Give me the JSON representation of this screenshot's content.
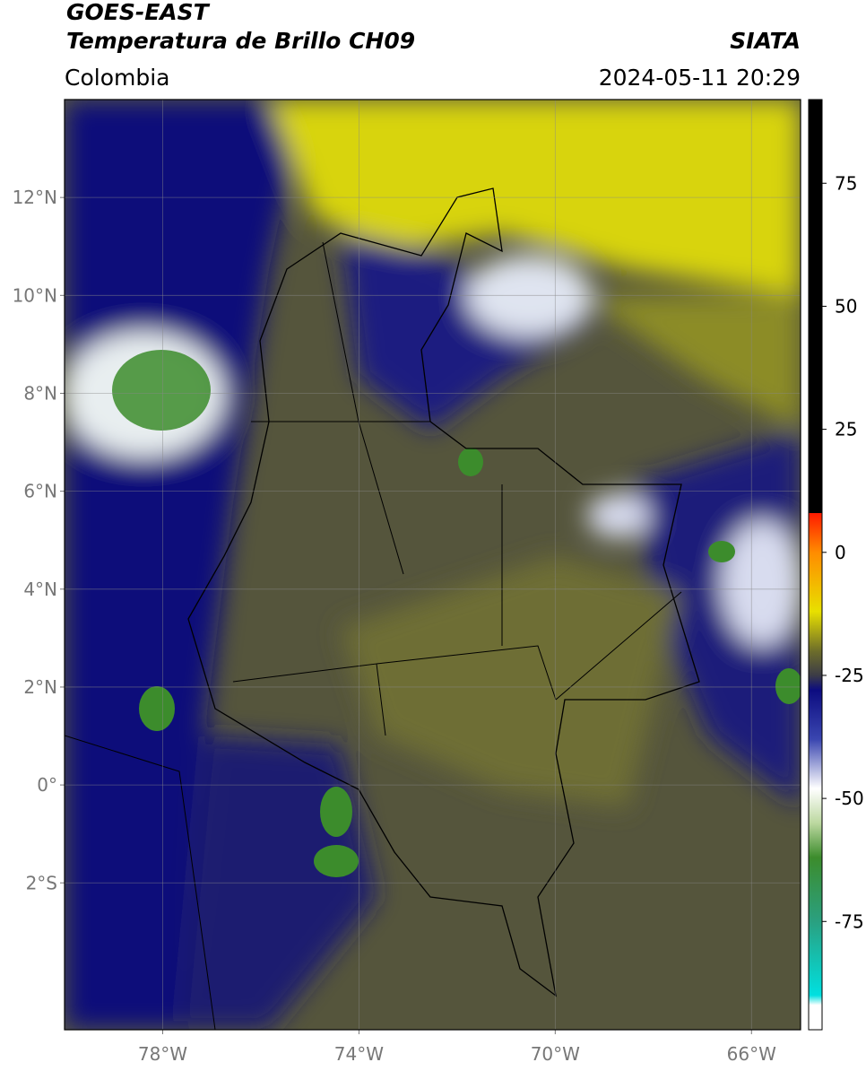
{
  "header": {
    "title_line1": "GOES-EAST",
    "title_line2": "Temperatura de Brillo CH09",
    "source": "SIATA",
    "region": "Colombia",
    "datetime": "2024-05-11 20:29"
  },
  "map": {
    "xlim": [
      -80,
      -65
    ],
    "ylim": [
      -5,
      14
    ],
    "xticks": [
      {
        "value": -78,
        "label": "78°W"
      },
      {
        "value": -74,
        "label": "74°W"
      },
      {
        "value": -70,
        "label": "70°W"
      },
      {
        "value": -66,
        "label": "66°W"
      }
    ],
    "yticks": [
      {
        "value": 12,
        "label": "12°N"
      },
      {
        "value": 10,
        "label": "10°N"
      },
      {
        "value": 8,
        "label": "8°N"
      },
      {
        "value": 6,
        "label": "6°N"
      },
      {
        "value": 4,
        "label": "4°N"
      },
      {
        "value": 2,
        "label": "2°N"
      },
      {
        "value": 0,
        "label": "0°"
      },
      {
        "value": -2,
        "label": "2°S"
      }
    ],
    "grid": true
  },
  "colorbar": {
    "lim": [
      -97,
      92
    ],
    "ticks": [
      75,
      50,
      25,
      0,
      -25,
      -50,
      -75
    ],
    "colormap": [
      {
        "value": 92,
        "color": "#000000"
      },
      {
        "value": 8,
        "color": "#000000"
      },
      {
        "value": 8,
        "color": "#ff1a00"
      },
      {
        "value": 0,
        "color": "#ff8c00"
      },
      {
        "value": -12,
        "color": "#e8e000"
      },
      {
        "value": -20,
        "color": "#6e6e2a"
      },
      {
        "value": -25,
        "color": "#3c3c46"
      },
      {
        "value": -28,
        "color": "#0c0c80"
      },
      {
        "value": -38,
        "color": "#3a46b0"
      },
      {
        "value": -48,
        "color": "#ffffff"
      },
      {
        "value": -55,
        "color": "#bcd8a0"
      },
      {
        "value": -62,
        "color": "#3c8c2c"
      },
      {
        "value": -75,
        "color": "#2aa080"
      },
      {
        "value": -90,
        "color": "#00e0e0"
      },
      {
        "value": -92,
        "color": "#ffffff"
      },
      {
        "value": -97,
        "color": "#ffffff"
      }
    ]
  }
}
